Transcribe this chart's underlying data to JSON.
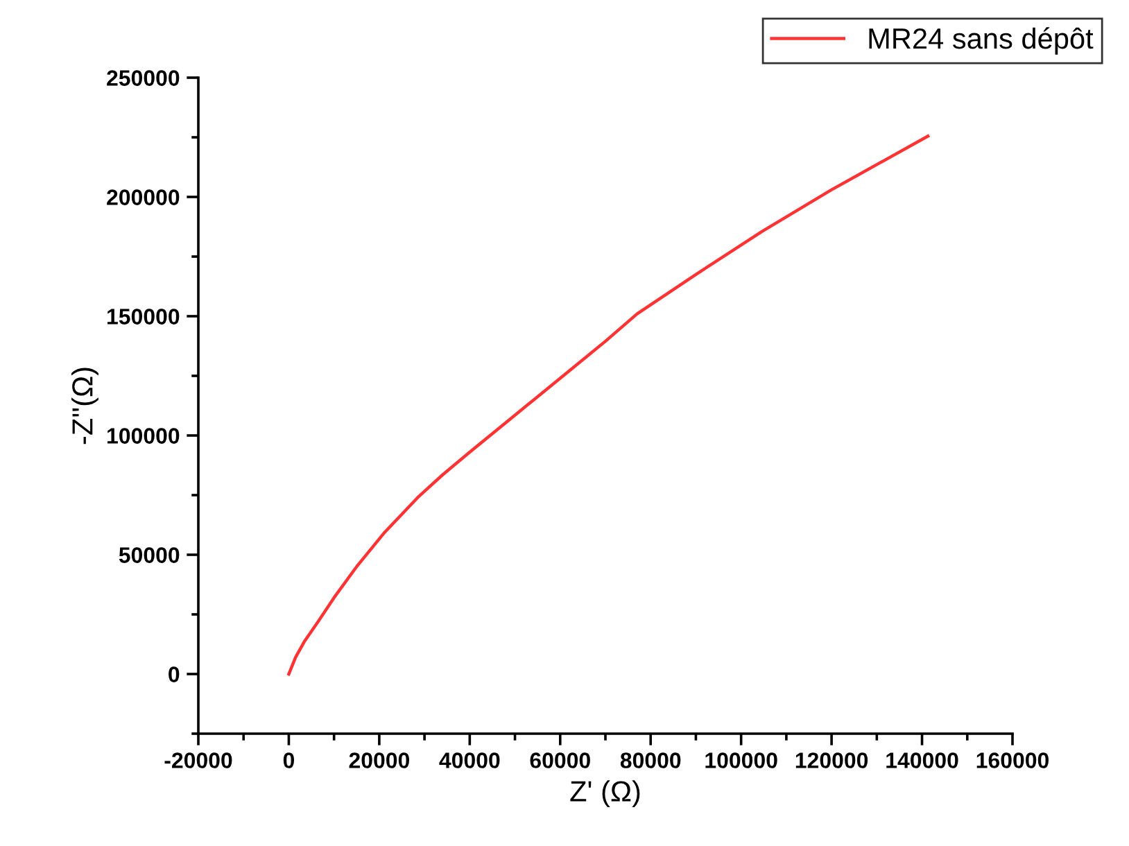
{
  "chart_data": {
    "type": "line",
    "xlabel": "Z' (Ω)",
    "ylabel": "-Z''(Ω)",
    "series": [
      {
        "name": "MR24 sans dépôt",
        "color": "#ff3333",
        "x": [
          0,
          1500,
          3400,
          6500,
          10000,
          15000,
          21000,
          28500,
          34000,
          40000,
          50000,
          60000,
          70000,
          77000,
          90000,
          104600,
          120000,
          141300
        ],
        "values": [
          0,
          7000,
          13500,
          22000,
          32000,
          45000,
          59000,
          74000,
          83500,
          93000,
          108500,
          124000,
          139500,
          151000,
          167500,
          185500,
          203000,
          225500
        ]
      }
    ],
    "xlim": [
      -20000,
      160000
    ],
    "xticks": [
      -20000,
      0,
      20000,
      40000,
      60000,
      80000,
      100000,
      120000,
      140000,
      160000
    ],
    "ylim": [
      -25000,
      250000
    ],
    "yticks": [
      0,
      50000,
      100000,
      150000,
      200000,
      250000
    ],
    "legend": "top right",
    "grid": false,
    "line_style": "solid",
    "marker": "none"
  }
}
